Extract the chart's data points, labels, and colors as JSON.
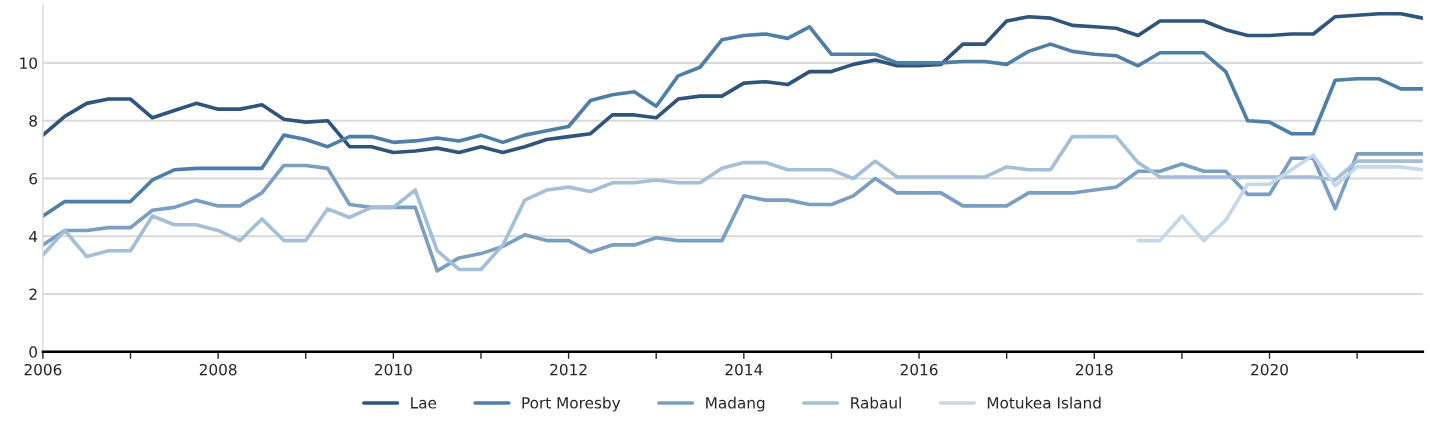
{
  "chart_data": {
    "type": "line",
    "x": [
      2006,
      2006.25,
      2006.5,
      2006.75,
      2007,
      2007.25,
      2007.5,
      2007.75,
      2008,
      2008.25,
      2008.5,
      2008.75,
      2009,
      2009.25,
      2009.5,
      2009.75,
      2010,
      2010.25,
      2010.5,
      2010.75,
      2011,
      2011.25,
      2011.5,
      2011.75,
      2012,
      2012.25,
      2012.5,
      2012.75,
      2013,
      2013.25,
      2013.5,
      2013.75,
      2014,
      2014.25,
      2014.5,
      2014.75,
      2015,
      2015.25,
      2015.5,
      2015.75,
      2016,
      2016.25,
      2016.5,
      2016.75,
      2017,
      2017.25,
      2017.5,
      2017.75,
      2018,
      2018.25,
      2018.5,
      2018.75,
      2019,
      2019.25,
      2019.5,
      2019.75,
      2020,
      2020.25,
      2020.5,
      2020.75,
      2021,
      2021.25,
      2021.5,
      2021.75
    ],
    "series": [
      {
        "name": "Lae",
        "color": "#30557d",
        "values": [
          7.5,
          8.15,
          8.6,
          8.75,
          8.75,
          8.1,
          8.35,
          8.6,
          8.4,
          8.4,
          8.55,
          8.05,
          7.95,
          8.0,
          7.1,
          7.1,
          6.9,
          6.95,
          7.05,
          6.9,
          7.1,
          6.9,
          7.1,
          7.35,
          7.45,
          7.55,
          8.2,
          8.2,
          8.1,
          8.75,
          8.85,
          8.85,
          9.3,
          9.35,
          9.25,
          9.7,
          9.7,
          9.95,
          10.1,
          9.9,
          9.9,
          9.95,
          10.65,
          10.65,
          11.45,
          11.6,
          11.55,
          11.3,
          11.25,
          11.2,
          10.95,
          11.45,
          11.45,
          11.45,
          11.15,
          10.95,
          10.95,
          11.0,
          11.0,
          11.6,
          11.65,
          11.7,
          11.7,
          11.55
        ]
      },
      {
        "name": "Port Moresby",
        "color": "#4f7fa8",
        "values": [
          4.7,
          5.2,
          5.2,
          5.2,
          5.2,
          5.95,
          6.3,
          6.35,
          6.35,
          6.35,
          6.35,
          7.5,
          7.35,
          7.1,
          7.45,
          7.45,
          7.25,
          7.3,
          7.4,
          7.3,
          7.5,
          7.25,
          7.5,
          7.65,
          7.8,
          8.7,
          8.9,
          9.0,
          8.5,
          9.55,
          9.85,
          10.8,
          10.95,
          11.0,
          10.85,
          11.25,
          10.3,
          10.3,
          10.3,
          10.0,
          10.0,
          10.0,
          10.05,
          10.05,
          9.95,
          10.4,
          10.65,
          10.4,
          10.3,
          10.25,
          9.9,
          10.35,
          10.35,
          10.35,
          9.7,
          8.0,
          7.95,
          7.55,
          7.55,
          9.4,
          9.45,
          9.45,
          9.1,
          9.1
        ]
      },
      {
        "name": "Madang",
        "color": "#7a9fc2",
        "values": [
          3.7,
          4.2,
          4.2,
          4.3,
          4.3,
          4.9,
          5.0,
          5.25,
          5.05,
          5.05,
          5.5,
          6.45,
          6.45,
          6.35,
          5.1,
          5.0,
          5.0,
          5.0,
          2.8,
          3.25,
          3.4,
          3.65,
          4.05,
          3.85,
          3.85,
          3.45,
          3.7,
          3.7,
          3.95,
          3.85,
          3.85,
          3.85,
          5.4,
          5.25,
          5.25,
          5.1,
          5.1,
          5.4,
          6.0,
          5.5,
          5.5,
          5.5,
          5.05,
          5.05,
          5.05,
          5.5,
          5.5,
          5.5,
          5.6,
          5.7,
          6.25,
          6.25,
          6.5,
          6.25,
          6.25,
          5.45,
          5.45,
          6.7,
          6.7,
          4.95,
          6.85,
          6.85,
          6.85,
          6.85
        ]
      },
      {
        "name": "Rabaul",
        "color": "#a4bfd8",
        "values": [
          3.35,
          4.2,
          3.3,
          3.5,
          3.5,
          4.7,
          4.4,
          4.4,
          4.2,
          3.85,
          4.6,
          3.85,
          3.85,
          4.95,
          4.65,
          5.0,
          5.0,
          5.6,
          3.5,
          2.85,
          2.85,
          3.7,
          5.25,
          5.6,
          5.7,
          5.55,
          5.85,
          5.85,
          5.95,
          5.85,
          5.85,
          6.35,
          6.55,
          6.55,
          6.3,
          6.3,
          6.3,
          6.0,
          6.6,
          6.05,
          6.05,
          6.05,
          6.05,
          6.05,
          6.4,
          6.3,
          6.3,
          7.45,
          7.45,
          7.45,
          6.55,
          6.05,
          6.05,
          6.05,
          6.05,
          6.05,
          6.05,
          6.05,
          6.05,
          5.95,
          6.6,
          6.6,
          6.6,
          6.6
        ]
      },
      {
        "name": "Motukea Island",
        "color": "#c5d8ea",
        "values": [
          null,
          null,
          null,
          null,
          null,
          null,
          null,
          null,
          null,
          null,
          null,
          null,
          null,
          null,
          null,
          null,
          null,
          null,
          null,
          null,
          null,
          null,
          null,
          null,
          null,
          null,
          null,
          null,
          null,
          null,
          null,
          null,
          null,
          null,
          null,
          null,
          null,
          null,
          null,
          null,
          null,
          null,
          null,
          null,
          null,
          null,
          null,
          null,
          null,
          null,
          3.85,
          3.85,
          4.7,
          3.85,
          4.55,
          5.8,
          5.8,
          6.3,
          6.8,
          5.75,
          6.4,
          6.4,
          6.4,
          6.3
        ]
      }
    ],
    "xlim": [
      2006,
      2021.75
    ],
    "xticks": [
      2006,
      {
        "value": 2007,
        "label": null
      },
      2008,
      {
        "value": 2009,
        "label": null
      },
      2010,
      {
        "value": 2011,
        "label": null
      },
      2012,
      {
        "value": 2013,
        "label": null
      },
      2014,
      {
        "value": 2015,
        "label": null
      },
      2016,
      {
        "value": 2017,
        "label": null
      },
      2018,
      {
        "value": 2019,
        "label": null
      },
      2020,
      {
        "value": 2021,
        "label": null
      }
    ],
    "ylim": [
      0,
      12
    ],
    "yticks": [
      0,
      2,
      4,
      6,
      8,
      10
    ],
    "grid": "y",
    "legend": "bottom",
    "marker": "none",
    "line_style": "solid"
  }
}
